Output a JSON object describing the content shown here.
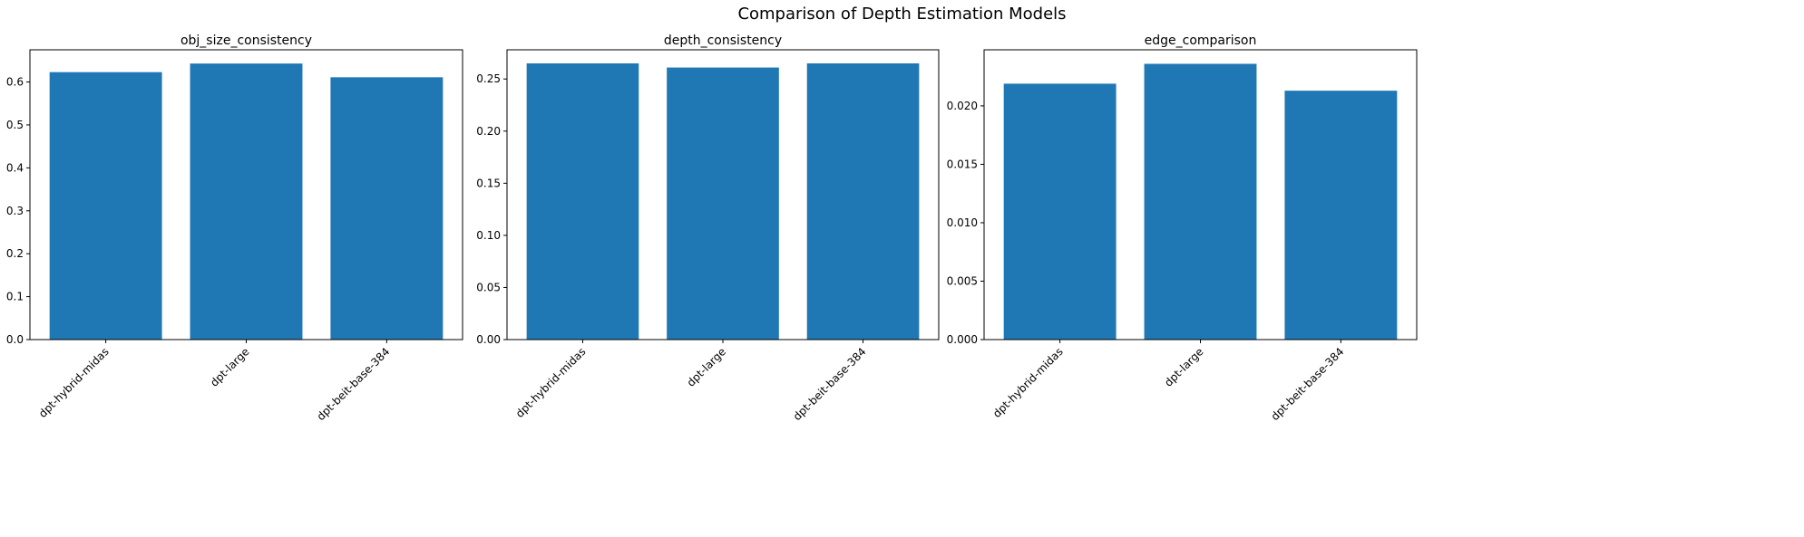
{
  "figure": {
    "title": "Comparison of Depth Estimation Models"
  },
  "colors": {
    "bar": "#1f77b4",
    "axis": "#000000",
    "background": "#ffffff"
  },
  "chart_data": [
    {
      "type": "bar",
      "title": "obj_size_consistency",
      "categories": [
        "dpt-hybrid-midas",
        "dpt-large",
        "dpt-beit-base-384"
      ],
      "values": [
        0.623,
        0.643,
        0.611
      ],
      "ylim": [
        0,
        0.675
      ],
      "yticks": [
        0.0,
        0.1,
        0.2,
        0.3,
        0.4,
        0.5,
        0.6
      ],
      "ytick_labels": [
        "0.0",
        "0.1",
        "0.2",
        "0.3",
        "0.4",
        "0.5",
        "0.6"
      ],
      "xlabel": "",
      "ylabel": "",
      "grid": false
    },
    {
      "type": "bar",
      "title": "depth_consistency",
      "categories": [
        "dpt-hybrid-midas",
        "dpt-large",
        "dpt-beit-base-384"
      ],
      "values": [
        0.265,
        0.261,
        0.265
      ],
      "ylim": [
        0,
        0.278
      ],
      "yticks": [
        0.0,
        0.05,
        0.1,
        0.15,
        0.2,
        0.25
      ],
      "ytick_labels": [
        "0.00",
        "0.05",
        "0.10",
        "0.15",
        "0.20",
        "0.25"
      ],
      "xlabel": "",
      "ylabel": "",
      "grid": false
    },
    {
      "type": "bar",
      "title": "edge_comparison",
      "categories": [
        "dpt-hybrid-midas",
        "dpt-large",
        "dpt-beit-base-384"
      ],
      "values": [
        0.0219,
        0.0236,
        0.0213
      ],
      "ylim": [
        0,
        0.0248
      ],
      "yticks": [
        0.0,
        0.005,
        0.01,
        0.015,
        0.02
      ],
      "ytick_labels": [
        "0.000",
        "0.005",
        "0.010",
        "0.015",
        "0.020"
      ],
      "xlabel": "",
      "ylabel": "",
      "grid": false
    }
  ]
}
